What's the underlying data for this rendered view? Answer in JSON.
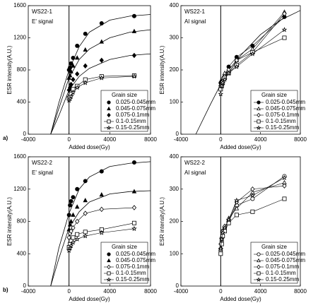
{
  "figure_labels": [
    "a)",
    "b)"
  ],
  "chart_data": [
    {
      "type": "scatter",
      "title": "WS22-1",
      "subtitle": "E' signal",
      "x_label": "Added dose(Gy)",
      "y_label": "ESR intensity(A.U.)",
      "xlim": [
        -4000,
        8000
      ],
      "xticks": [
        -4000,
        0,
        4000,
        8000
      ],
      "ylim": [
        0,
        1600
      ],
      "yticks": [
        0,
        400,
        800,
        1200,
        1600
      ],
      "vline": 0,
      "legend": "lower right",
      "legend_title": "Grain size",
      "color": "#000000",
      "x": [
        0,
        100,
        200,
        400,
        800,
        1600,
        3200,
        6400
      ],
      "series": [
        {
          "name": "0.025-0.045mm",
          "marker": "circle-filled",
          "line": false,
          "values": [
            800,
            830,
            880,
            950,
            1100,
            1250,
            1380,
            1470
          ]
        },
        {
          "name": "0.045-0.075mm",
          "marker": "triangle-filled",
          "line": false,
          "values": [
            700,
            730,
            780,
            850,
            950,
            1050,
            1150,
            1280
          ]
        },
        {
          "name": "0.075-0.1mm",
          "marker": "diamond-filled",
          "line": false,
          "values": [
            550,
            580,
            620,
            680,
            750,
            850,
            920,
            980
          ]
        },
        {
          "name": "0.1-0.15mm",
          "marker": "square-open",
          "line": true,
          "values": [
            450,
            470,
            500,
            560,
            600,
            680,
            720,
            730
          ]
        },
        {
          "name": "0.15-0.25mm",
          "marker": "star-open",
          "line": true,
          "values": [
            420,
            440,
            470,
            520,
            580,
            640,
            700,
            720
          ]
        }
      ],
      "fits": [
        {
          "x": [
            -1800,
            -1000,
            0,
            1000,
            2000,
            4000,
            6000,
            8000
          ],
          "values": [
            0,
            390,
            800,
            1090,
            1270,
            1420,
            1470,
            1490
          ]
        },
        {
          "x": [
            -1800,
            -1000,
            0,
            1000,
            2000,
            4000,
            6000,
            8000
          ],
          "values": [
            0,
            320,
            700,
            930,
            1060,
            1200,
            1270,
            1300
          ]
        },
        {
          "x": [
            -1800,
            -1000,
            0,
            1000,
            2000,
            4000,
            6000,
            8000
          ],
          "values": [
            0,
            230,
            550,
            720,
            820,
            930,
            980,
            1000
          ]
        }
      ]
    },
    {
      "type": "scatter",
      "title": "WS22-1",
      "subtitle": "Al signal",
      "x_label": "Added dose(Gy)",
      "y_label": "ESR intensity(A.U.)",
      "xlim": [
        -4000,
        8000
      ],
      "xticks": [
        -4000,
        0,
        4000,
        8000
      ],
      "ylim": [
        0,
        400
      ],
      "yticks": [
        0,
        100,
        200,
        300,
        400
      ],
      "vline": 0,
      "legend": "lower right",
      "legend_title": "Grain size",
      "color": "#000000",
      "x": [
        0,
        100,
        200,
        400,
        800,
        1600,
        3200,
        6400
      ],
      "series": [
        {
          "name": "0.025-0.045mm",
          "marker": "circle-filled",
          "line": true,
          "values": [
            160,
            165,
            170,
            180,
            210,
            240,
            275,
            365
          ]
        },
        {
          "name": "0.045-0.075mm",
          "marker": "triangle-open",
          "line": true,
          "values": [
            155,
            160,
            175,
            190,
            200,
            230,
            265,
            380
          ]
        },
        {
          "name": "0.075-0.1mm",
          "marker": "diamond-open",
          "line": true,
          "values": [
            150,
            160,
            165,
            180,
            200,
            230,
            255,
            375
          ]
        },
        {
          "name": "0.1-0.15mm",
          "marker": "square-open",
          "line": true,
          "values": [
            140,
            150,
            160,
            175,
            190,
            215,
            255,
            300
          ]
        },
        {
          "name": "0.15-0.25mm",
          "marker": "star-open",
          "line": true,
          "values": [
            125,
            150,
            160,
            170,
            190,
            210,
            250,
            325
          ]
        }
      ],
      "fits": [
        {
          "x": [
            -2500,
            -1000,
            0,
            2000,
            4000,
            6000,
            8000
          ],
          "values": [
            0,
            95,
            155,
            245,
            310,
            355,
            385
          ]
        }
      ]
    },
    {
      "type": "scatter",
      "title": "WS22-2",
      "subtitle": "E' signal",
      "x_label": "Added dose(Gy)",
      "y_label": "ESR intensity(A.U.)",
      "xlim": [
        -4000,
        8000
      ],
      "xticks": [
        -4000,
        0,
        4000,
        8000
      ],
      "ylim": [
        0,
        1600
      ],
      "yticks": [
        0,
        400,
        800,
        1200,
        1600
      ],
      "vline": 0,
      "legend": "lower right",
      "legend_title": "Grain size",
      "color": "#000000",
      "x": [
        0,
        100,
        200,
        400,
        800,
        1600,
        3200,
        6400
      ],
      "series": [
        {
          "name": "0.025-0.045mm",
          "marker": "circle-filled",
          "line": false,
          "values": [
            880,
            1000,
            1050,
            1100,
            1200,
            1300,
            1420,
            1530
          ]
        },
        {
          "name": "0.045-0.075mm",
          "marker": "triangle-filled",
          "line": false,
          "values": [
            700,
            760,
            800,
            880,
            980,
            1060,
            1130,
            1170
          ]
        },
        {
          "name": "0.075-0.1mm",
          "marker": "diamond-open",
          "line": true,
          "values": [
            600,
            650,
            680,
            720,
            800,
            900,
            950,
            970
          ]
        },
        {
          "name": "0.1-0.15mm",
          "marker": "square-open",
          "line": true,
          "values": [
            480,
            520,
            560,
            600,
            640,
            670,
            700,
            780
          ]
        },
        {
          "name": "0.15-0.25mm",
          "marker": "star-open",
          "line": true,
          "values": [
            440,
            470,
            500,
            540,
            580,
            620,
            660,
            710
          ]
        }
      ],
      "fits": [
        {
          "x": [
            -1800,
            -1000,
            0,
            1000,
            2000,
            4000,
            6000,
            8000
          ],
          "values": [
            0,
            470,
            900,
            1200,
            1350,
            1480,
            1520,
            1540
          ]
        },
        {
          "x": [
            -1800,
            -1000,
            0,
            1000,
            2000,
            4000,
            6000,
            8000
          ],
          "values": [
            0,
            340,
            720,
            920,
            1040,
            1140,
            1170,
            1180
          ]
        }
      ]
    },
    {
      "type": "scatter",
      "title": "WS22-2",
      "subtitle": "Al signal",
      "x_label": "Added dose(Gy)",
      "y_label": "ESR intensity(A.U.)",
      "xlim": [
        -4000,
        8000
      ],
      "xticks": [
        -4000,
        0,
        4000,
        8000
      ],
      "ylim": [
        0,
        400
      ],
      "yticks": [
        0,
        100,
        200,
        300,
        400
      ],
      "vline": 0,
      "legend": "lower right",
      "legend_title": "Grain size",
      "color": "#000000",
      "x": [
        0,
        100,
        200,
        400,
        800,
        1600,
        3200,
        6400
      ],
      "series": [
        {
          "name": "0.025-0.045mm",
          "marker": "circle-open",
          "line": true,
          "values": [
            110,
            140,
            170,
            180,
            200,
            250,
            270,
            340
          ]
        },
        {
          "name": "0.045-0.075mm",
          "marker": "triangle-open",
          "line": true,
          "values": [
            120,
            150,
            160,
            175,
            210,
            240,
            290,
            320
          ]
        },
        {
          "name": "0.075-0.1mm",
          "marker": "diamond-open",
          "line": true,
          "values": [
            130,
            150,
            170,
            185,
            200,
            260,
            300,
            310
          ]
        },
        {
          "name": "0.1-0.15mm",
          "marker": "square-open",
          "line": true,
          "values": [
            100,
            130,
            155,
            170,
            195,
            220,
            230,
            270
          ]
        },
        {
          "name": "0.15-0.25mm",
          "marker": "star-open",
          "line": true,
          "values": [
            115,
            145,
            165,
            180,
            205,
            265,
            280,
            335
          ]
        }
      ],
      "fits": []
    }
  ]
}
